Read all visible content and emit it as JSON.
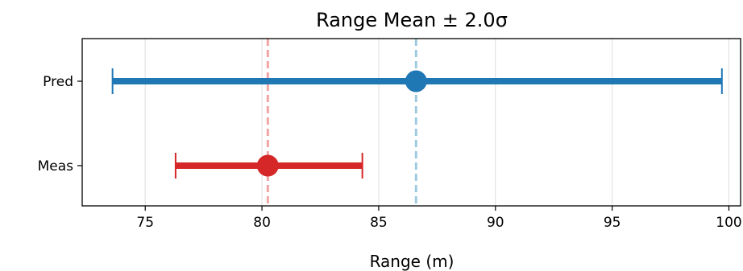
{
  "chart_data": {
    "type": "errorbar",
    "title": "Range Mean ± 2.0σ",
    "xlabel": "Range (m)",
    "ylabel": "",
    "xlim": [
      72.3,
      100.5
    ],
    "xticks": [
      75,
      80,
      85,
      90,
      95,
      100
    ],
    "xtick_labels": [
      "75",
      "80",
      "85",
      "90",
      "95",
      "100"
    ],
    "grid": "vertical",
    "categories": [
      "Pred",
      "Meas"
    ],
    "series": [
      {
        "name": "Pred",
        "mean": 86.6,
        "lower": 73.6,
        "upper": 99.7,
        "color": "#1f77b4",
        "ref_line_color": "#9ecae1"
      },
      {
        "name": "Meas",
        "mean": 80.25,
        "lower": 76.3,
        "upper": 84.3,
        "color": "#d62728",
        "ref_line_color": "#f2a5a5"
      }
    ]
  }
}
